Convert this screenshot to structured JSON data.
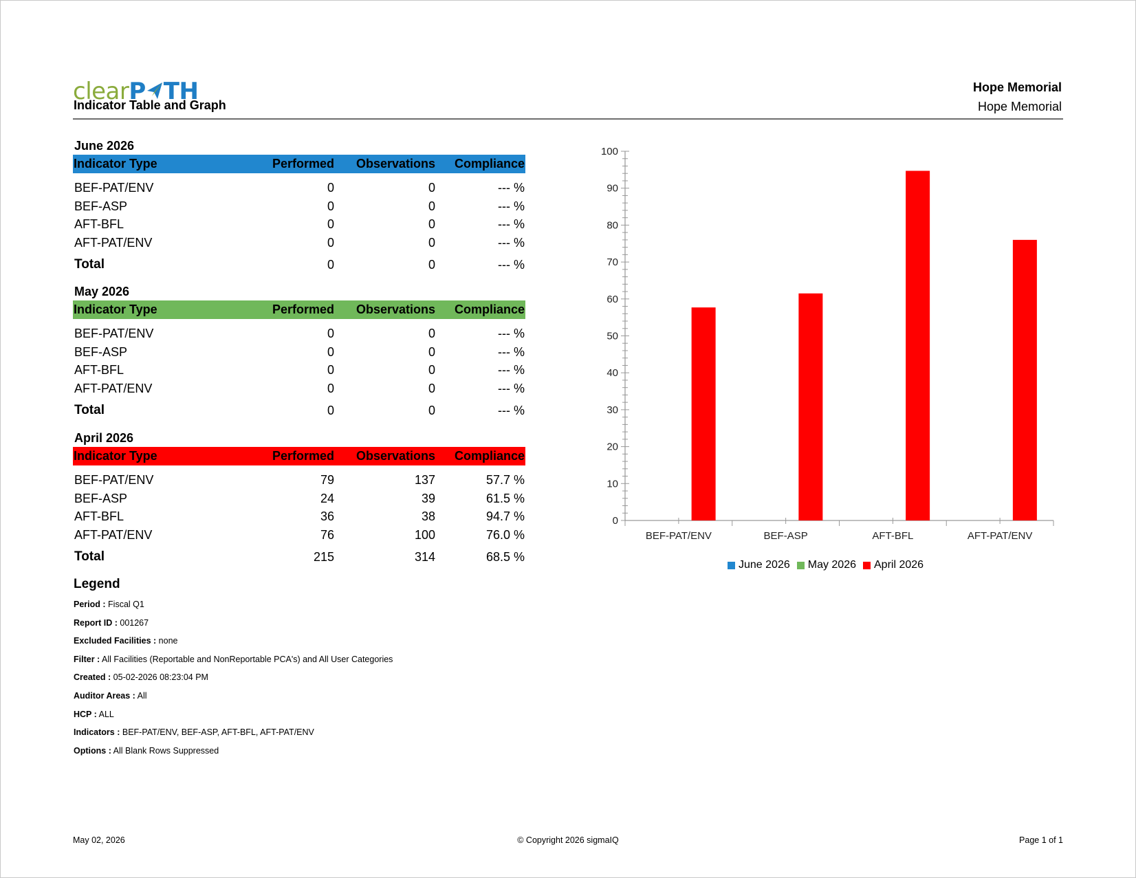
{
  "header": {
    "logo_text_a": "clear",
    "logo_text_b": "P",
    "logo_text_c": "TH",
    "title": "Indicator Table and Graph",
    "facility_bold": "Hope Memorial",
    "facility": "Hope Memorial"
  },
  "columns": {
    "type": "Indicator Type",
    "performed": "Performed",
    "observations": "Observations",
    "compliance": "Compliance"
  },
  "months": [
    {
      "title": "June 2026",
      "color": "#2187cf",
      "rows": [
        {
          "type": "BEF-PAT/ENV",
          "performed": "0",
          "observations": "0",
          "compliance": "--- %"
        },
        {
          "type": "BEF-ASP",
          "performed": "0",
          "observations": "0",
          "compliance": "--- %"
        },
        {
          "type": "AFT-BFL",
          "performed": "0",
          "observations": "0",
          "compliance": "--- %"
        },
        {
          "type": "AFT-PAT/ENV",
          "performed": "0",
          "observations": "0",
          "compliance": "--- %"
        }
      ],
      "total": {
        "label": "Total",
        "performed": "0",
        "observations": "0",
        "compliance": "--- %"
      }
    },
    {
      "title": "May 2026",
      "color": "#70b85a",
      "rows": [
        {
          "type": "BEF-PAT/ENV",
          "performed": "0",
          "observations": "0",
          "compliance": "--- %"
        },
        {
          "type": "BEF-ASP",
          "performed": "0",
          "observations": "0",
          "compliance": "--- %"
        },
        {
          "type": "AFT-BFL",
          "performed": "0",
          "observations": "0",
          "compliance": "--- %"
        },
        {
          "type": "AFT-PAT/ENV",
          "performed": "0",
          "observations": "0",
          "compliance": "--- %"
        }
      ],
      "total": {
        "label": "Total",
        "performed": "0",
        "observations": "0",
        "compliance": "--- %"
      }
    },
    {
      "title": "April 2026",
      "color": "#ff0000",
      "rows": [
        {
          "type": "BEF-PAT/ENV",
          "performed": "79",
          "observations": "137",
          "compliance": "57.7 %"
        },
        {
          "type": "BEF-ASP",
          "performed": "24",
          "observations": "39",
          "compliance": "61.5 %"
        },
        {
          "type": "AFT-BFL",
          "performed": "36",
          "observations": "38",
          "compliance": "94.7 %"
        },
        {
          "type": "AFT-PAT/ENV",
          "performed": "76",
          "observations": "100",
          "compliance": "76.0 %"
        }
      ],
      "total": {
        "label": "Total",
        "performed": "215",
        "observations": "314",
        "compliance": "68.5 %"
      }
    }
  ],
  "legend": {
    "heading": "Legend",
    "items": [
      {
        "label": "Period :",
        "value": "Fiscal Q1"
      },
      {
        "label": "Report ID :",
        "value": "001267"
      },
      {
        "label": "Excluded Facilities :",
        "value": "none"
      },
      {
        "label": "Filter :",
        "value": "All Facilities (Reportable and NonReportable PCA's) and All User Categories"
      },
      {
        "label": "Created :",
        "value": "05-02-2026 08:23:04 PM"
      },
      {
        "label": "Auditor Areas :",
        "value": "All"
      },
      {
        "label": "HCP :",
        "value": "ALL"
      },
      {
        "label": "Indicators :",
        "value": "BEF-PAT/ENV, BEF-ASP, AFT-BFL, AFT-PAT/ENV"
      },
      {
        "label": "Options :",
        "value": "All Blank Rows Suppressed"
      }
    ]
  },
  "chart_data": {
    "type": "bar",
    "categories": [
      "BEF-PAT/ENV",
      "BEF-ASP",
      "AFT-BFL",
      "AFT-PAT/ENV"
    ],
    "series": [
      {
        "name": "June 2026",
        "color": "#2187cf",
        "values": [
          0,
          0,
          0,
          0
        ]
      },
      {
        "name": "May 2026",
        "color": "#70b85a",
        "values": [
          0,
          0,
          0,
          0
        ]
      },
      {
        "name": "April 2026",
        "color": "#ff0000",
        "values": [
          57.7,
          61.5,
          94.7,
          76.0
        ]
      }
    ],
    "ylim": [
      0,
      100
    ],
    "yticks": [
      0,
      10,
      20,
      30,
      40,
      50,
      60,
      70,
      80,
      90,
      100
    ],
    "grid": false,
    "legend_position": "bottom"
  },
  "footer": {
    "date": "May 02, 2026",
    "copyright": "© Copyright 2026 sigmaIQ",
    "page": "Page 1 of 1"
  }
}
